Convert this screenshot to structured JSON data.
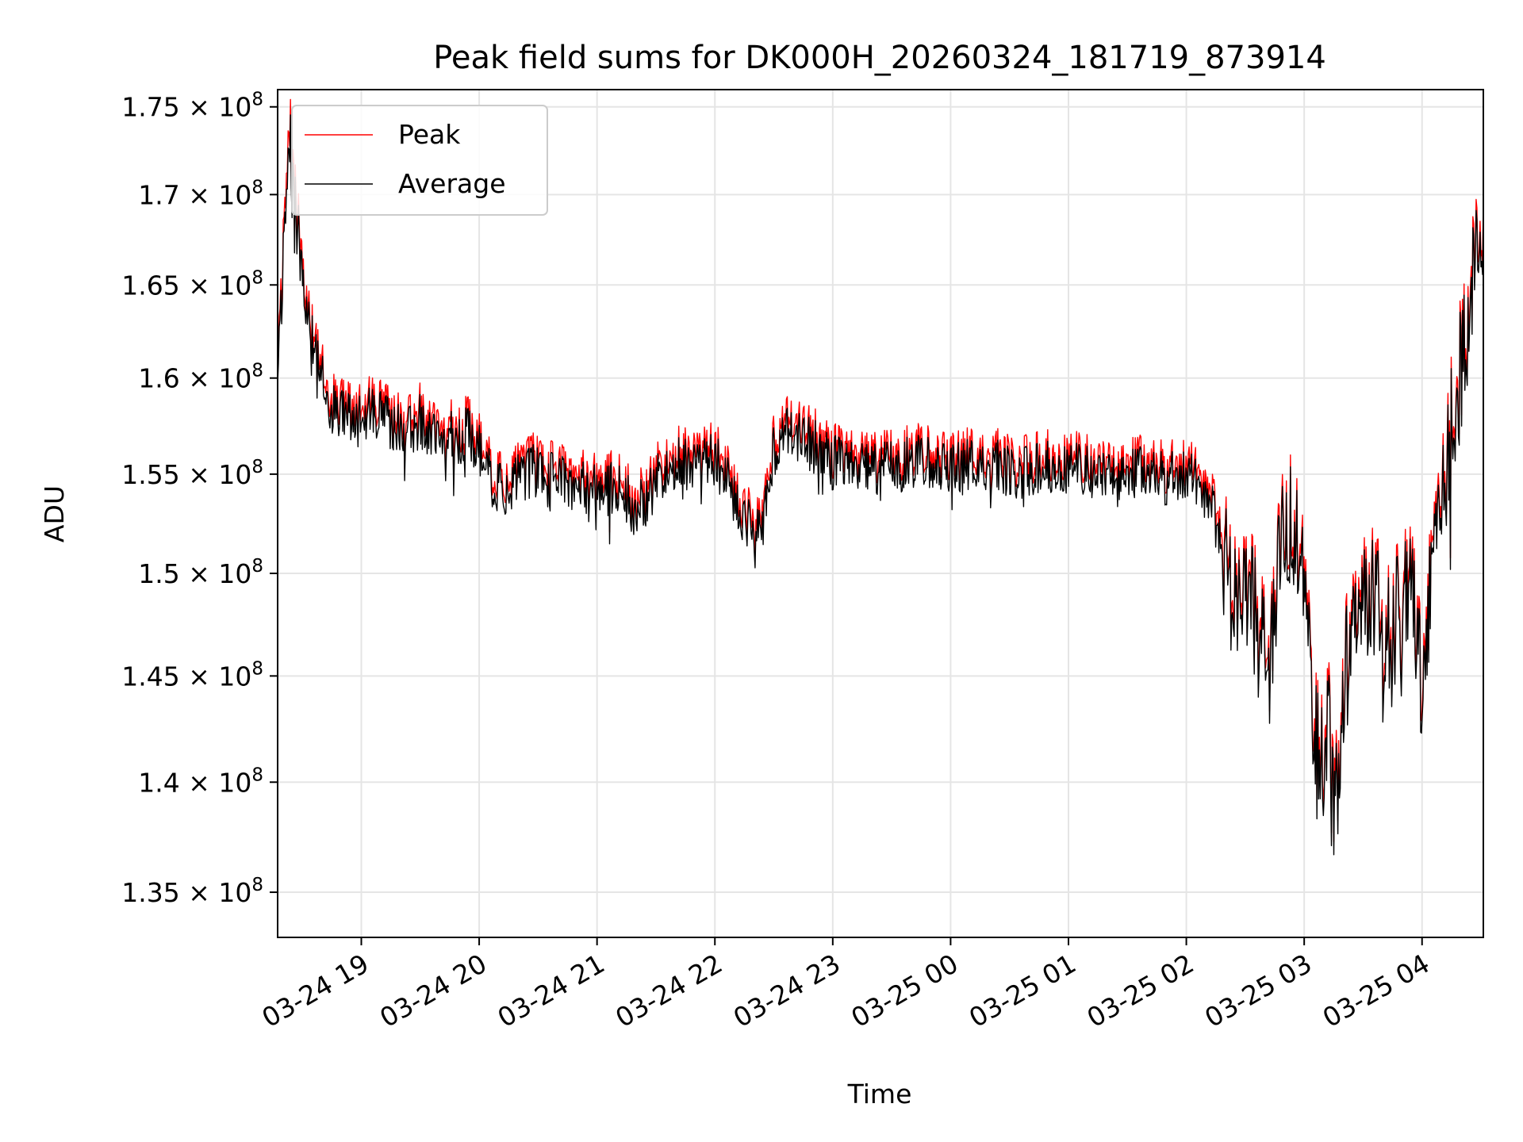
{
  "chart_data": {
    "type": "line",
    "title": "Peak field sums for DK000H_20260324_181719_873914",
    "xlabel": "Time",
    "ylabel": "ADU",
    "x_start_hour": 18.29,
    "x_end_hour": 28.52,
    "x_ticks": [
      {
        "hour": 19,
        "label": "03-24 19"
      },
      {
        "hour": 20,
        "label": "03-24 20"
      },
      {
        "hour": 21,
        "label": "03-24 21"
      },
      {
        "hour": 22,
        "label": "03-24 22"
      },
      {
        "hour": 23,
        "label": "03-24 23"
      },
      {
        "hour": 24,
        "label": "03-25 00"
      },
      {
        "hour": 25,
        "label": "03-25 01"
      },
      {
        "hour": 26,
        "label": "03-25 02"
      },
      {
        "hour": 27,
        "label": "03-25 03"
      },
      {
        "hour": 28,
        "label": "03-25 04"
      }
    ],
    "y_scale": "log",
    "ylim": [
      133000000,
      176000000
    ],
    "y_ticks": [
      {
        "value": 135000000,
        "mantissa": "1.35",
        "exponent": "8"
      },
      {
        "value": 140000000,
        "mantissa": "1.4",
        "exponent": "8"
      },
      {
        "value": 145000000,
        "mantissa": "1.45",
        "exponent": "8"
      },
      {
        "value": 150000000,
        "mantissa": "1.5",
        "exponent": "8"
      },
      {
        "value": 155000000,
        "mantissa": "1.55",
        "exponent": "8"
      },
      {
        "value": 160000000,
        "mantissa": "1.6",
        "exponent": "8"
      },
      {
        "value": 165000000,
        "mantissa": "1.65",
        "exponent": "8"
      },
      {
        "value": 170000000,
        "mantissa": "1.7",
        "exponent": "8"
      },
      {
        "value": 175000000,
        "mantissa": "1.75",
        "exponent": "8"
      }
    ],
    "tick_times_sign": "×",
    "tick_base": "10",
    "grid": true,
    "legend_position": "top-left",
    "series": [
      {
        "name": "Peak",
        "color": "#ff0000",
        "x_hours": [
          18.29,
          18.33,
          18.38,
          18.43,
          18.5,
          18.6,
          18.7,
          18.8,
          18.9,
          19.0,
          19.1,
          19.2,
          19.3,
          19.4,
          19.5,
          19.6,
          19.7,
          19.8,
          19.9,
          20.0,
          20.1,
          20.2,
          20.3,
          20.4,
          20.5,
          20.6,
          20.7,
          20.8,
          20.9,
          21.0,
          21.1,
          21.2,
          21.3,
          21.4,
          21.5,
          21.6,
          21.7,
          21.8,
          21.9,
          22.0,
          22.1,
          22.2,
          22.3,
          22.4,
          22.5,
          22.6,
          22.7,
          22.8,
          22.9,
          23.0,
          23.2,
          23.4,
          23.6,
          23.8,
          24.0,
          24.2,
          24.4,
          24.6,
          24.8,
          25.0,
          25.2,
          25.4,
          25.6,
          25.8,
          26.0,
          26.1,
          26.2,
          26.3,
          26.4,
          26.5,
          26.6,
          26.7,
          26.8,
          26.9,
          27.0,
          27.05,
          27.1,
          27.15,
          27.2,
          27.25,
          27.3,
          27.35,
          27.4,
          27.5,
          27.6,
          27.7,
          27.8,
          27.9,
          28.0,
          28.1,
          28.2,
          28.3,
          28.4,
          28.45,
          28.52
        ],
        "values": [
          162000000,
          166000000,
          175500000,
          170000000,
          166000000,
          162000000,
          160500000,
          159000000,
          158500000,
          158500000,
          159000000,
          158500000,
          158000000,
          158000000,
          158500000,
          157500000,
          158000000,
          157500000,
          157800000,
          157000000,
          155500000,
          154800000,
          155500000,
          155800000,
          156000000,
          155500000,
          155700000,
          155200000,
          155000000,
          154800000,
          155000000,
          154800000,
          154000000,
          154300000,
          155500000,
          156000000,
          156500000,
          156000000,
          156800000,
          156500000,
          155500000,
          154000000,
          153000000,
          152500000,
          157000000,
          158000000,
          157800000,
          157300000,
          157000000,
          156500000,
          156300000,
          156000000,
          156200000,
          156500000,
          156000000,
          156200000,
          156100000,
          155800000,
          156100000,
          156000000,
          155900000,
          155700000,
          155800000,
          155500000,
          155600000,
          155500000,
          154500000,
          152000000,
          150000000,
          151000000,
          148000000,
          146500000,
          152000000,
          154000000,
          149500000,
          146000000,
          142500000,
          141500000,
          144500000,
          139000000,
          141000000,
          145500000,
          149500000,
          149000000,
          150000000,
          147500000,
          149000000,
          150500000,
          145000000,
          151500000,
          156000000,
          160500000,
          164000000,
          166500000,
          167500000
        ]
      },
      {
        "name": "Average",
        "color": "#000000",
        "x_hours": [
          18.29,
          18.33,
          18.38,
          18.43,
          18.5,
          18.6,
          18.7,
          18.8,
          18.9,
          19.0,
          19.1,
          19.2,
          19.3,
          19.4,
          19.5,
          19.6,
          19.7,
          19.8,
          19.9,
          20.0,
          20.1,
          20.2,
          20.3,
          20.4,
          20.5,
          20.6,
          20.7,
          20.8,
          20.9,
          21.0,
          21.1,
          21.2,
          21.3,
          21.4,
          21.5,
          21.6,
          21.7,
          21.8,
          21.9,
          22.0,
          22.1,
          22.2,
          22.3,
          22.4,
          22.5,
          22.6,
          22.7,
          22.8,
          22.9,
          23.0,
          23.2,
          23.4,
          23.6,
          23.8,
          24.0,
          24.2,
          24.4,
          24.6,
          24.8,
          25.0,
          25.2,
          25.4,
          25.6,
          25.8,
          26.0,
          26.1,
          26.2,
          26.3,
          26.4,
          26.5,
          26.6,
          26.7,
          26.8,
          26.9,
          27.0,
          27.05,
          27.1,
          27.15,
          27.2,
          27.25,
          27.3,
          27.35,
          27.4,
          27.5,
          27.6,
          27.7,
          27.8,
          27.9,
          28.0,
          28.1,
          28.2,
          28.3,
          28.4,
          28.45,
          28.52
        ],
        "values": [
          161500000,
          165300000,
          174500000,
          169300000,
          165400000,
          161400000,
          159900000,
          158400000,
          157900000,
          157900000,
          158400000,
          157900000,
          157400000,
          157400000,
          157900000,
          156900000,
          157400000,
          156900000,
          157200000,
          156400000,
          154900000,
          154200000,
          154900000,
          155200000,
          155400000,
          154900000,
          155100000,
          154600000,
          154400000,
          154200000,
          154400000,
          154200000,
          153400000,
          153700000,
          154900000,
          155400000,
          155900000,
          155400000,
          156200000,
          155900000,
          154900000,
          153400000,
          152400000,
          151900000,
          156400000,
          157400000,
          157200000,
          156700000,
          156400000,
          155900000,
          155700000,
          155400000,
          155600000,
          155900000,
          155400000,
          155600000,
          155500000,
          155200000,
          155500000,
          155400000,
          155300000,
          155100000,
          155200000,
          154900000,
          155000000,
          154900000,
          153900000,
          151400000,
          149400000,
          150400000,
          147400000,
          145900000,
          151400000,
          153400000,
          148900000,
          145400000,
          141900000,
          140900000,
          143900000,
          138400000,
          140400000,
          144900000,
          148900000,
          148400000,
          149400000,
          146900000,
          148400000,
          149900000,
          144400000,
          150900000,
          155400000,
          159900000,
          163400000,
          165900000,
          166900000
        ]
      }
    ]
  }
}
